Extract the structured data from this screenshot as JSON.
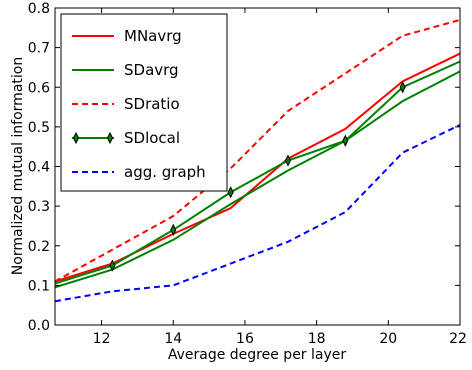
{
  "chart_data": {
    "type": "line",
    "title": "",
    "xlabel": "Average degree per layer",
    "ylabel": "Normalized mutual information",
    "xlim": [
      10.7,
      22
    ],
    "ylim": [
      0.0,
      0.8
    ],
    "xticks": [
      12,
      14,
      16,
      18,
      20,
      22
    ],
    "yticks": [
      0.0,
      0.1,
      0.2,
      0.3,
      0.4,
      0.5,
      0.6,
      0.7,
      0.8
    ],
    "xtick_labels": [
      "12",
      "14",
      "16",
      "18",
      "20",
      "22"
    ],
    "ytick_labels": [
      "0.0",
      "0.1",
      "0.2",
      "0.3",
      "0.4",
      "0.5",
      "0.6",
      "0.7",
      "0.8"
    ],
    "grid": false,
    "legend_position": "top-left",
    "series": [
      {
        "name": "MNavrg",
        "color": "#ff0000",
        "style": "solid",
        "marker": "none",
        "x": [
          10.7,
          12.3,
          14.0,
          15.6,
          17.2,
          18.8,
          20.4,
          22.0
        ],
        "y": [
          0.11,
          0.155,
          0.23,
          0.295,
          0.42,
          0.495,
          0.615,
          0.685
        ]
      },
      {
        "name": "SDavrg",
        "color": "#008000",
        "style": "solid",
        "marker": "none",
        "x": [
          10.7,
          12.3,
          14.0,
          15.6,
          17.2,
          18.8,
          20.4,
          22.0
        ],
        "y": [
          0.095,
          0.14,
          0.215,
          0.305,
          0.39,
          0.465,
          0.565,
          0.64
        ]
      },
      {
        "name": "SDratio",
        "color": "#ff0000",
        "style": "dashed",
        "marker": "none",
        "x": [
          10.7,
          12.3,
          14.0,
          15.6,
          17.2,
          18.8,
          20.4,
          22.0
        ],
        "y": [
          0.11,
          0.19,
          0.275,
          0.395,
          0.54,
          0.635,
          0.73,
          0.77
        ]
      },
      {
        "name": "SDlocal",
        "color": "#008000",
        "style": "solid",
        "marker": "thin_diamond",
        "x": [
          10.7,
          12.3,
          14.0,
          15.6,
          17.2,
          18.8,
          20.4,
          22.0
        ],
        "y": [
          0.105,
          0.15,
          0.24,
          0.335,
          0.415,
          0.465,
          0.6,
          0.665
        ]
      },
      {
        "name": "agg. graph",
        "color": "#0000ff",
        "style": "dashed",
        "marker": "none",
        "x": [
          10.7,
          12.3,
          14.0,
          15.6,
          17.2,
          18.8,
          20.4,
          22.0
        ],
        "y": [
          0.06,
          0.085,
          0.1,
          0.155,
          0.21,
          0.285,
          0.435,
          0.505
        ]
      }
    ]
  }
}
